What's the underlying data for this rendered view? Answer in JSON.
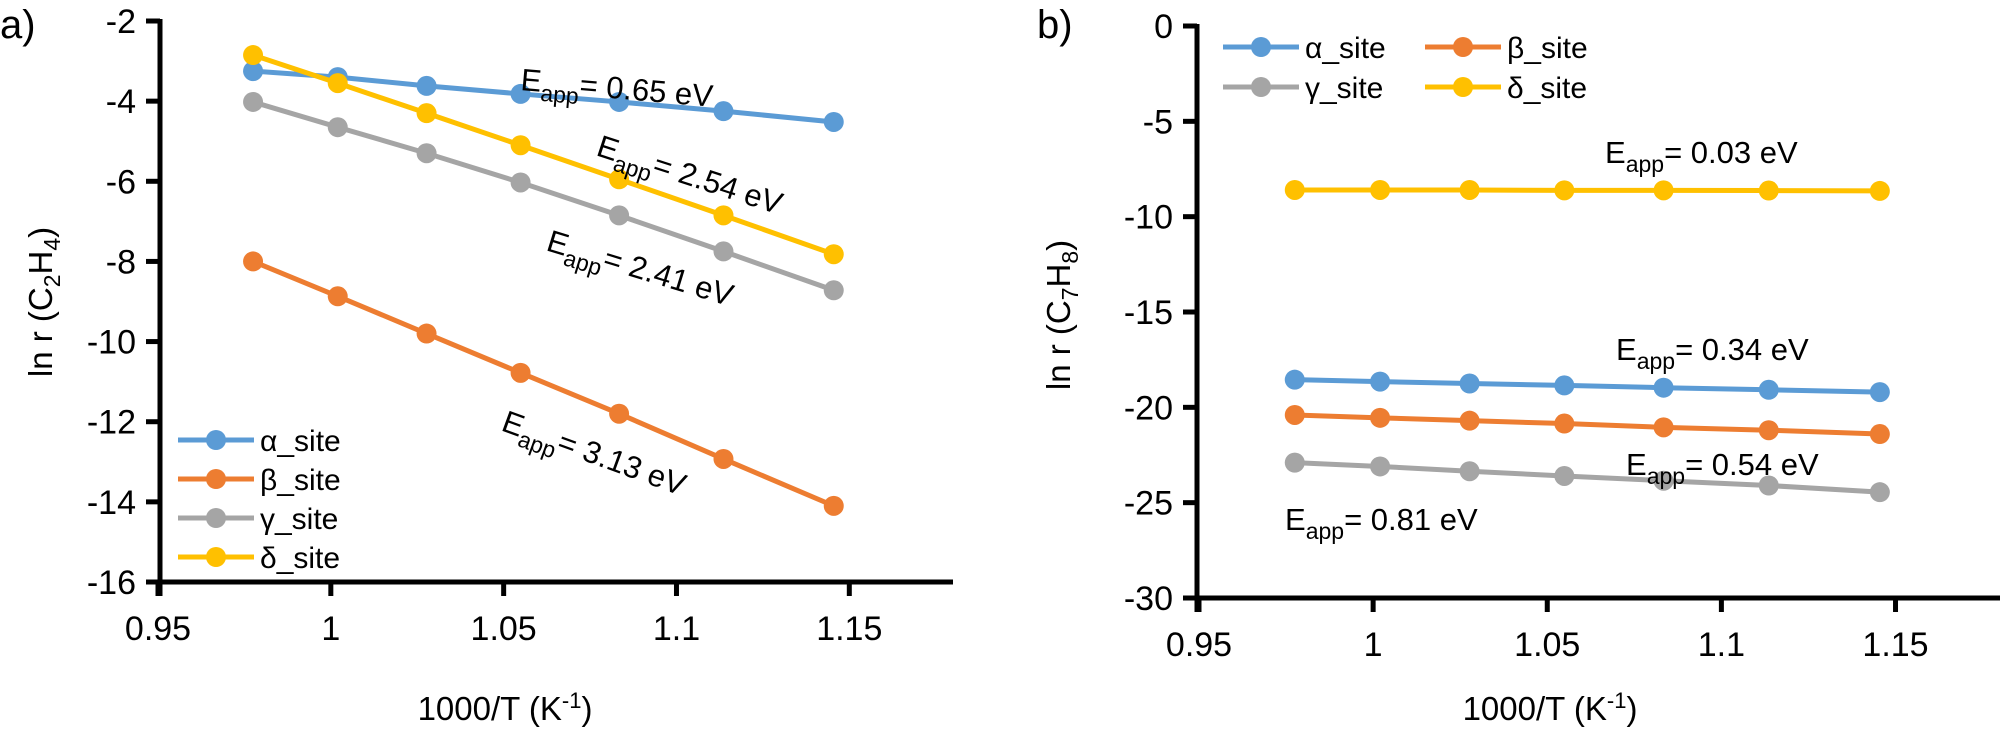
{
  "chart_data": [
    {
      "type": "line",
      "panel_label": "a)",
      "title": "",
      "xlabel": "1000/T (K-1)",
      "xlabel_parts": {
        "main": "1000/T (K",
        "sup": "-1",
        "end": ")"
      },
      "ylabel": "ln r (C2H4)",
      "ylabel_parts": {
        "pre": "ln r (C",
        "sub1": "2",
        "mid": "H",
        "sub2": "4",
        "end": ")"
      },
      "xlim": [
        0.95,
        1.18
      ],
      "ylim": [
        -16,
        -2
      ],
      "xticks": [
        "0.95",
        "1",
        "1.05",
        "1.1",
        "1.15"
      ],
      "xtick_values": [
        0.95,
        1.0,
        1.05,
        1.1,
        1.15
      ],
      "yticks": [
        "-2",
        "-4",
        "-6",
        "-8",
        "-10",
        "-12",
        "-14",
        "-16"
      ],
      "ytick_values": [
        -2,
        -4,
        -6,
        -8,
        -10,
        -12,
        -14,
        -16
      ],
      "grid": false,
      "legend_position": "bottom-left",
      "x": [
        0.9775,
        1.002,
        1.0277,
        1.0549,
        1.0834,
        1.1136,
        1.1455
      ],
      "series": [
        {
          "name": "α_site",
          "color": "#5B9BD5",
          "values": [
            -3.25,
            -3.4,
            -3.62,
            -3.82,
            -4.02,
            -4.25,
            -4.52
          ]
        },
        {
          "name": "β_site",
          "color": "#ED7D31",
          "values": [
            -8.0,
            -8.87,
            -9.8,
            -10.78,
            -11.8,
            -12.93,
            -14.1
          ]
        },
        {
          "name": "γ_site",
          "color": "#A5A5A5",
          "values": [
            -4.02,
            -4.65,
            -5.3,
            -6.03,
            -6.85,
            -7.75,
            -8.72
          ]
        },
        {
          "name": "δ_site",
          "color": "#FFC000",
          "values": [
            -2.85,
            -3.55,
            -4.3,
            -5.1,
            -5.95,
            -6.85,
            -7.82
          ]
        }
      ],
      "annotations": [
        {
          "series": "α_site",
          "prefix": "E",
          "sub": "app",
          "text": "= 0.65 eV",
          "rotation": 5
        },
        {
          "series": "δ_site",
          "prefix": "E",
          "sub": "app",
          "text": "= 2.54 eV",
          "rotation": 18
        },
        {
          "series": "γ_site",
          "prefix": "E",
          "sub": "app",
          "text": "= 2.41 eV",
          "rotation": 17
        },
        {
          "series": "β_site",
          "prefix": "E",
          "sub": "app",
          "text": "= 3.13 eV",
          "rotation": 20
        }
      ]
    },
    {
      "type": "line",
      "panel_label": "b)",
      "title": "",
      "xlabel": "1000/T (K-1)",
      "xlabel_parts": {
        "main": "1000/T (K",
        "sup": "-1",
        "end": ")"
      },
      "ylabel": "ln r (C7H8)",
      "ylabel_parts": {
        "pre": "ln r (C",
        "sub1": "7",
        "mid": "H",
        "sub2": "8",
        "end": ")"
      },
      "xlim": [
        0.95,
        1.18
      ],
      "ylim": [
        -30,
        0
      ],
      "xticks": [
        "0.95",
        "1",
        "1.05",
        "1.1",
        "1.15"
      ],
      "xtick_values": [
        0.95,
        1.0,
        1.05,
        1.1,
        1.15
      ],
      "yticks": [
        "0",
        "-5",
        "-10",
        "-15",
        "-20",
        "-25",
        "-30"
      ],
      "ytick_values": [
        0,
        -5,
        -10,
        -15,
        -20,
        -25,
        -30
      ],
      "grid": false,
      "legend_position": "top-left",
      "x": [
        0.9775,
        1.002,
        1.0277,
        1.0549,
        1.0834,
        1.1136,
        1.1455
      ],
      "series": [
        {
          "name": "α_site",
          "color": "#5B9BD5",
          "values": [
            -18.55,
            -18.65,
            -18.75,
            -18.85,
            -18.97,
            -19.08,
            -19.2
          ]
        },
        {
          "name": "β_site",
          "color": "#ED7D31",
          "values": [
            -20.4,
            -20.55,
            -20.7,
            -20.85,
            -21.05,
            -21.2,
            -21.4
          ]
        },
        {
          "name": "γ_site",
          "color": "#A5A5A5",
          "values": [
            -22.9,
            -23.1,
            -23.35,
            -23.6,
            -23.85,
            -24.1,
            -24.45
          ]
        },
        {
          "name": "δ_site",
          "color": "#FFC000",
          "values": [
            -8.6,
            -8.6,
            -8.6,
            -8.62,
            -8.62,
            -8.63,
            -8.65
          ]
        }
      ],
      "annotations": [
        {
          "series": "δ_site",
          "prefix": "E",
          "sub": "app",
          "text": "= 0.03 eV",
          "rotation": 0
        },
        {
          "series": "α_site",
          "prefix": "E",
          "sub": "app",
          "text": "= 0.34 eV",
          "rotation": 0
        },
        {
          "series": "β_site",
          "prefix": "E",
          "sub": "app",
          "text": "= 0.54 eV",
          "rotation": 0
        },
        {
          "series": "γ_site",
          "prefix": "E",
          "sub": "app",
          "text": "= 0.81 eV",
          "rotation": 0
        }
      ]
    }
  ]
}
